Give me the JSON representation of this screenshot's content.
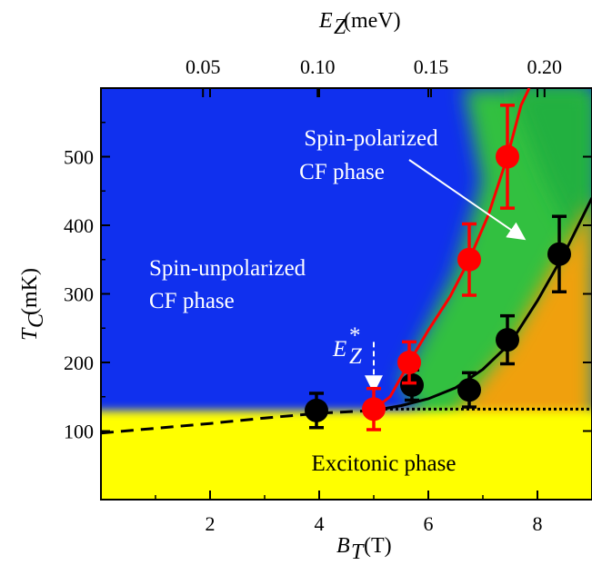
{
  "chart_data": {
    "type": "scatter",
    "x_axis": {
      "var": "B",
      "sub": "T",
      "unit": "(T)",
      "range": [
        0,
        9
      ],
      "ticks": [
        2,
        4,
        6,
        8
      ],
      "tick_labels": [
        "2",
        "4",
        "6",
        "8"
      ]
    },
    "y_axis": {
      "var": "T",
      "sub": "C",
      "unit": "(mK)",
      "range": [
        0,
        600
      ],
      "ticks": [
        100,
        200,
        300,
        400,
        500
      ],
      "tick_labels": [
        "100",
        "200",
        "300",
        "400",
        "500"
      ]
    },
    "top_axis": {
      "var": "E",
      "sub": "Z",
      "unit": "(meV)",
      "ticks": [
        0.05,
        0.1,
        0.15,
        0.2
      ],
      "tick_labels": [
        "0.05",
        "0.10",
        "0.15",
        "0.20"
      ],
      "tick_positions_in_B": [
        1.87,
        3.97,
        6.05,
        8.13
      ]
    },
    "series": [
      {
        "color": "#000000",
        "marker": "circle",
        "points": [
          {
            "x": 3.95,
            "y": 130,
            "err": 25
          },
          {
            "x": 5.7,
            "y": 167,
            "err": 22
          },
          {
            "x": 6.75,
            "y": 160,
            "err": 25
          },
          {
            "x": 7.45,
            "y": 233,
            "err": 35
          },
          {
            "x": 8.4,
            "y": 358,
            "err": 55
          }
        ]
      },
      {
        "color": "#ff0000",
        "marker": "circle",
        "points": [
          {
            "x": 5.0,
            "y": 132,
            "err": 30
          },
          {
            "x": 5.65,
            "y": 200,
            "err": 30
          },
          {
            "x": 6.75,
            "y": 350,
            "err": 52
          },
          {
            "x": 7.45,
            "y": 500,
            "err": 75
          }
        ]
      }
    ],
    "black_curve": {
      "dashed": [
        [
          0,
          97
        ],
        [
          1,
          104
        ],
        [
          2,
          111
        ],
        [
          3,
          119
        ],
        [
          4,
          126
        ],
        [
          5,
          130
        ]
      ],
      "solid": [
        [
          5,
          130
        ],
        [
          5.5,
          137
        ],
        [
          6,
          147
        ],
        [
          6.5,
          163
        ],
        [
          7,
          190
        ],
        [
          7.5,
          228
        ],
        [
          8,
          290
        ],
        [
          8.5,
          360
        ],
        [
          9,
          440
        ]
      ]
    },
    "red_curve": [
      [
        5.0,
        132
      ],
      [
        5.3,
        150
      ],
      [
        5.65,
        200
      ],
      [
        6.0,
        247
      ],
      [
        6.4,
        296
      ],
      [
        6.75,
        350
      ],
      [
        7.1,
        415
      ],
      [
        7.45,
        500
      ],
      [
        7.7,
        575
      ],
      [
        7.85,
        600
      ]
    ],
    "threshold_line": {
      "y": 132,
      "x_from": 5.0,
      "x_to": 9.0
    },
    "estar_marker": {
      "x": 5.0,
      "y_from": 230,
      "y_to": 160
    },
    "regions": {
      "spin_unpolarized": "#1030ee",
      "spin_polarized": "#30c040",
      "intermediate": "#f0a010",
      "excitonic": "#ffff00"
    },
    "annotations": {
      "spin_polarized_line1": "Spin-polarized",
      "spin_polarized_line2": "CF phase",
      "spin_unpolarized_line1": "Spin-unpolarized",
      "spin_unpolarized_line2": "CF phase",
      "excitonic": "Excitonic phase",
      "estar_main": "E",
      "estar_sub": "Z",
      "estar_sup": "*"
    }
  }
}
